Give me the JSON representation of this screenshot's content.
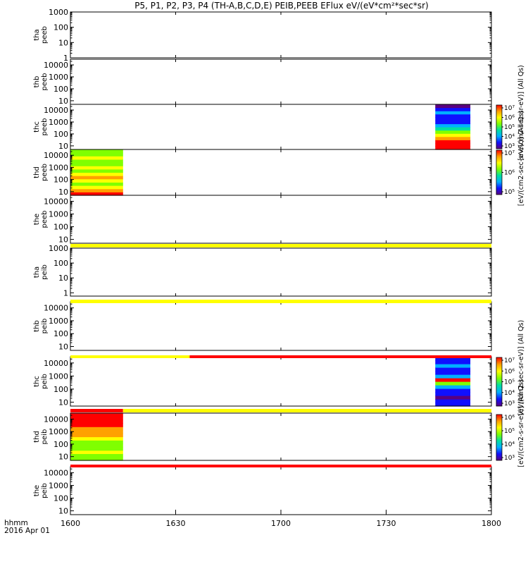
{
  "title": "P5, P1, P2, P3, P4 (TH-A,B,C,D,E) PEIB,PEEB EFlux eV/(eV*cm²*sec*sr)",
  "footer": {
    "time_label": "hhmm",
    "date_label": "2016 Apr 01"
  },
  "colors": {
    "axis": "#000000",
    "bar_yellow": "#ffff00",
    "bar_red": "#ff0000",
    "palette": [
      "#5a0080",
      "#1010ff",
      "#00b0ff",
      "#00e0a0",
      "#80ff00",
      "#ffff00",
      "#ffa000",
      "#ff0000"
    ]
  },
  "chart_data": {
    "type": "heatmap",
    "x_range": [
      "1600",
      "1800"
    ],
    "x_ticks": [
      {
        "value": 0,
        "label": "1600"
      },
      {
        "value": 30,
        "label": "1630"
      },
      {
        "value": 60,
        "label": "1700"
      },
      {
        "value": 90,
        "label": "1730"
      },
      {
        "value": 120,
        "label": "1800"
      }
    ],
    "panels": [
      {
        "name": "tha-peeb",
        "ylabel": [
          "tha",
          "peeb"
        ],
        "yscale": "log",
        "ylim": [
          1,
          1000
        ],
        "ytick_labels": [
          "1000",
          "100",
          "10",
          "1"
        ],
        "spectra": []
      },
      {
        "name": "thb-peeb",
        "ylabel": [
          "thb",
          "peeb"
        ],
        "yscale": "log",
        "ylim": [
          5,
          30000
        ],
        "ytick_labels": [
          "10000",
          "1000",
          "100",
          "10"
        ],
        "spectra": []
      },
      {
        "name": "thc-peeb",
        "ylabel": [
          "thc",
          "peeb"
        ],
        "yscale": "log",
        "ylim": [
          5,
          30000
        ],
        "ytick_labels": [
          "10000",
          "1000",
          "100",
          "10"
        ],
        "spectra": [
          {
            "x_start": 104,
            "x_end": 114,
            "energy_colors": [
              7,
              7,
              7,
              6,
              5,
              4,
              3,
              2,
              1,
              1,
              1,
              2,
              1,
              0
            ]
          }
        ]
      },
      {
        "name": "thd-peeb",
        "ylabel": [
          "thd",
          "peeb"
        ],
        "yscale": "log",
        "ylim": [
          5,
          30000
        ],
        "ytick_labels": [
          "10000",
          "1000",
          "100",
          "10"
        ],
        "spectra": [
          {
            "x_start": 0,
            "x_end": 15,
            "energy_colors": [
              7,
              6,
              5,
              4,
              5,
              6,
              5,
              4,
              5,
              4,
              4,
              5,
              4,
              4
            ]
          }
        ]
      },
      {
        "name": "the-peeb",
        "ylabel": [
          "the",
          "peeb"
        ],
        "yscale": "log",
        "ylim": [
          5,
          30000
        ],
        "ytick_labels": [
          "10000",
          "1000",
          "100",
          "10"
        ],
        "spectra": []
      },
      {
        "name": "tha-peib",
        "ylabel": [
          "tha",
          "peib"
        ],
        "yscale": "log",
        "ylim": [
          0.6,
          1000
        ],
        "ytick_labels": [
          "1000",
          "100",
          "10",
          "1"
        ],
        "spectra": []
      },
      {
        "name": "thb-peib",
        "ylabel": [
          "thb",
          "peib"
        ],
        "yscale": "log",
        "ylim": [
          5,
          30000
        ],
        "ytick_labels": [
          "10000",
          "1000",
          "100",
          "10"
        ],
        "spectra": []
      },
      {
        "name": "thc-peib",
        "ylabel": [
          "thc",
          "peib"
        ],
        "yscale": "log",
        "ylim": [
          5,
          30000
        ],
        "ytick_labels": [
          "10000",
          "1000",
          "100",
          "10"
        ],
        "spectra": [
          {
            "x_start": 104,
            "x_end": 114,
            "energy_colors": [
              1,
              1,
              0,
              1,
              1,
              2,
              4,
              7,
              2,
              1,
              1,
              2,
              1,
              1
            ]
          }
        ]
      },
      {
        "name": "thd-peib",
        "ylabel": [
          "thd",
          "peib"
        ],
        "yscale": "log",
        "ylim": [
          5,
          30000
        ],
        "ytick_labels": [
          "10000",
          "1000",
          "100",
          "10"
        ],
        "spectra": [
          {
            "x_start": 0,
            "x_end": 15,
            "energy_colors": [
              4,
              4,
              5,
              4,
              4,
              4,
              5,
              6,
              6,
              6,
              7,
              7,
              7,
              7
            ]
          }
        ]
      },
      {
        "name": "the-peib",
        "ylabel": [
          "the",
          "peib"
        ],
        "yscale": "log",
        "ylim": [
          5,
          30000
        ],
        "ytick_labels": [
          "10000",
          "1000",
          "100",
          "10"
        ],
        "spectra": []
      }
    ],
    "separator_bars": [
      {
        "after_panel": 4,
        "segments": [
          {
            "x_start": 0,
            "x_end": 120,
            "color": "yellow"
          }
        ]
      },
      {
        "after_panel": 5,
        "segments": [
          {
            "x_start": 0,
            "x_end": 120,
            "color": "yellow"
          }
        ]
      },
      {
        "after_panel": 6,
        "segments": [
          {
            "x_start": 0,
            "x_end": 34,
            "color": "yellow"
          },
          {
            "x_start": 34,
            "x_end": 120,
            "color": "red"
          }
        ]
      },
      {
        "after_panel": 7,
        "segments": [
          {
            "x_start": 0,
            "x_end": 15,
            "color": "red"
          },
          {
            "x_start": 15,
            "x_end": 120,
            "color": "yellow"
          }
        ]
      },
      {
        "after_panel": 8,
        "segments": [
          {
            "x_start": 0,
            "x_end": 120,
            "color": "red"
          }
        ]
      }
    ],
    "colorbars": [
      {
        "name": "colorbar-peeb-c",
        "label": "[eV/(cm2-sec-sr-eV)] (All Qs)",
        "tick_labels": [
          "10⁷",
          "10⁶",
          "10⁵",
          "10⁴",
          "10³"
        ]
      },
      {
        "name": "colorbar-peeb-d",
        "label": "[eV/(cm2-sec-sr-eV)] (All Qs)",
        "tick_labels": [
          "10⁷",
          "10⁶",
          "10⁵"
        ]
      },
      {
        "name": "colorbar-peib-c",
        "label": "[eV/(cm2-sec-sr-eV)] (All Qs)",
        "tick_labels": [
          "10⁷",
          "10⁶",
          "10⁵",
          "10⁴",
          "10³"
        ]
      },
      {
        "name": "colorbar-peib-d",
        "label": "[eV/(cm2-s-sr-eV)] (All Qs)",
        "tick_labels": [
          "10⁶",
          "10⁵",
          "10⁴",
          "10³"
        ]
      }
    ]
  }
}
